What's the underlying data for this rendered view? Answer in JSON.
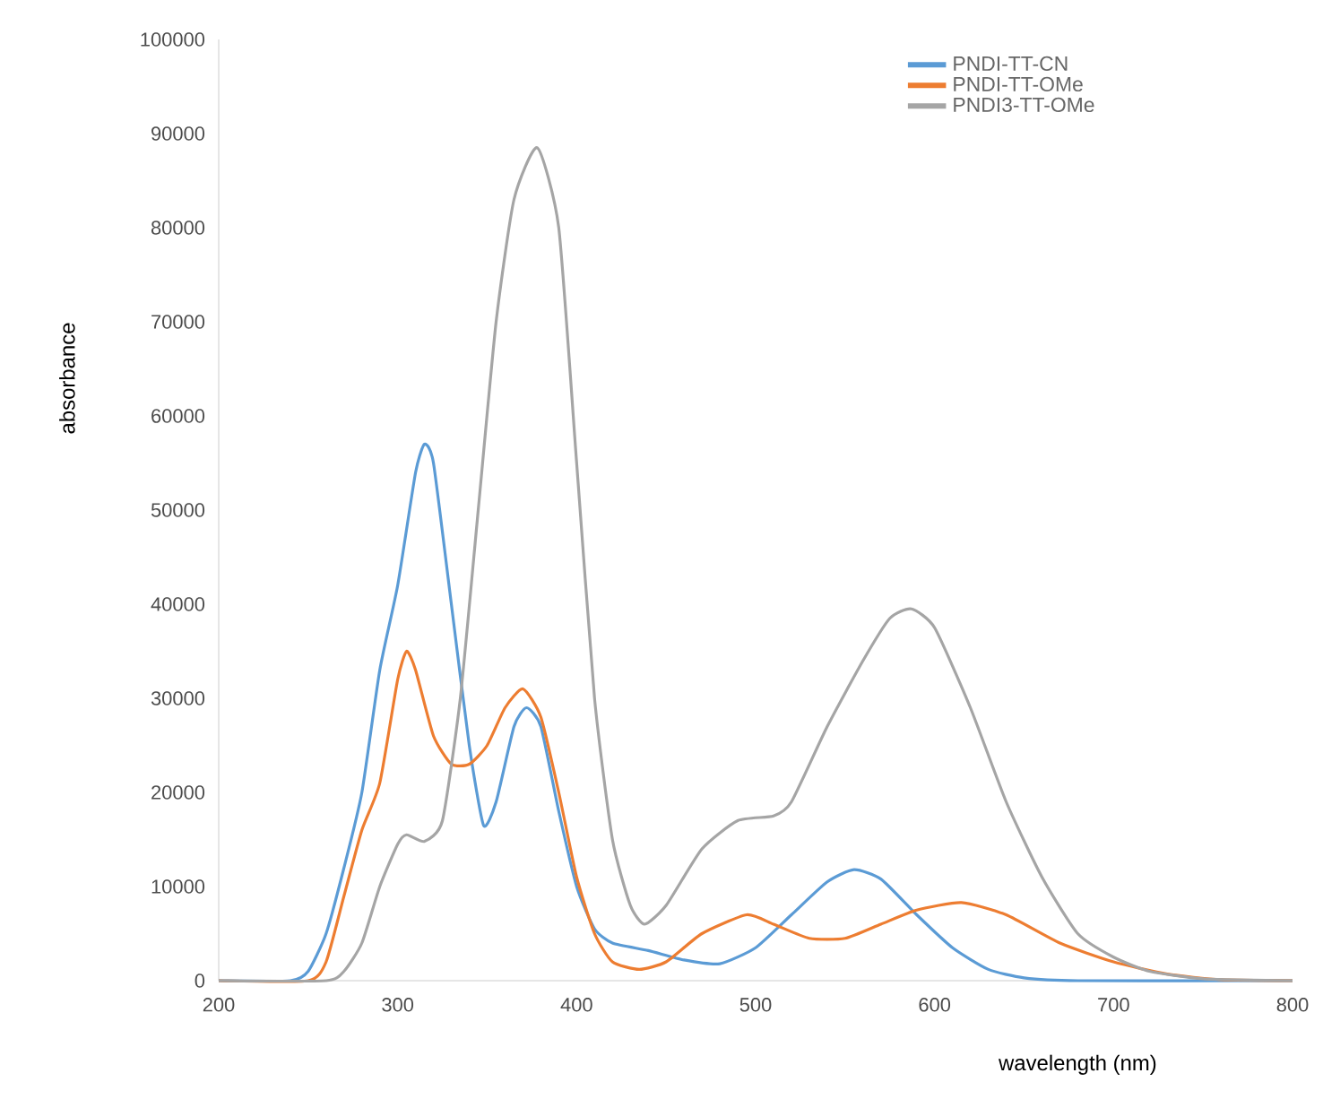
{
  "chart_data": {
    "type": "line",
    "xlabel": "wavelength (nm)",
    "ylabel": "absorbance",
    "xlim": [
      200,
      800
    ],
    "xticks": [
      200,
      300,
      400,
      500,
      600,
      700,
      800
    ],
    "ylim": [
      0,
      100000
    ],
    "yticks": [
      0,
      10000,
      20000,
      30000,
      40000,
      50000,
      60000,
      70000,
      80000,
      90000,
      100000
    ],
    "grid": false,
    "legend": "top right",
    "marker": "none",
    "line_style": "solid",
    "series": [
      {
        "name": "PNDI-TT-CN",
        "color": "#5b9bd5",
        "x": [
          200,
          240,
          250,
          260,
          270,
          280,
          290,
          300,
          310,
          315,
          320,
          330,
          340,
          348,
          355,
          365,
          372,
          380,
          390,
          400,
          410,
          420,
          440,
          460,
          480,
          500,
          520,
          540,
          555,
          570,
          590,
          610,
          630,
          650,
          680,
          800
        ],
        "values": [
          0,
          0,
          1000,
          5000,
          12000,
          20000,
          33000,
          42000,
          54000,
          57000,
          55000,
          40000,
          25000,
          16500,
          19000,
          27000,
          29000,
          27000,
          18000,
          10000,
          5500,
          4000,
          3200,
          2200,
          1800,
          3500,
          7000,
          10500,
          11800,
          10800,
          7000,
          3500,
          1200,
          300,
          0,
          0
        ]
      },
      {
        "name": "PNDI-TT-OMe",
        "color": "#ed7d31",
        "x": [
          200,
          250,
          260,
          270,
          280,
          290,
          300,
          305,
          310,
          320,
          330,
          340,
          350,
          360,
          370,
          380,
          390,
          400,
          410,
          420,
          435,
          450,
          470,
          495,
          510,
          530,
          550,
          570,
          590,
          615,
          640,
          670,
          700,
          730,
          760,
          800
        ],
        "values": [
          0,
          0,
          2000,
          9000,
          16000,
          21000,
          32000,
          35000,
          33000,
          26000,
          23000,
          23000,
          25000,
          29000,
          31000,
          28000,
          20000,
          11000,
          5000,
          2000,
          1200,
          2000,
          5000,
          7000,
          6000,
          4500,
          4500,
          6000,
          7500,
          8300,
          7000,
          4000,
          2000,
          700,
          100,
          0
        ]
      },
      {
        "name": "PNDI3-TT-OMe",
        "color": "#a5a5a5",
        "x": [
          200,
          260,
          270,
          280,
          290,
          300,
          305,
          315,
          325,
          335,
          345,
          355,
          365,
          378,
          390,
          400,
          410,
          420,
          430,
          438,
          450,
          470,
          490,
          510,
          520,
          540,
          560,
          575,
          587,
          600,
          620,
          640,
          660,
          680,
          700,
          720,
          750,
          800
        ],
        "values": [
          0,
          0,
          1000,
          4000,
          10000,
          14500,
          15500,
          14800,
          17000,
          30000,
          50000,
          70000,
          83000,
          88500,
          80000,
          55000,
          30000,
          15000,
          8000,
          6000,
          8000,
          14000,
          17000,
          17500,
          19000,
          27000,
          34000,
          38500,
          39500,
          37500,
          29000,
          19000,
          11000,
          5000,
          2500,
          1000,
          200,
          0
        ]
      }
    ]
  }
}
